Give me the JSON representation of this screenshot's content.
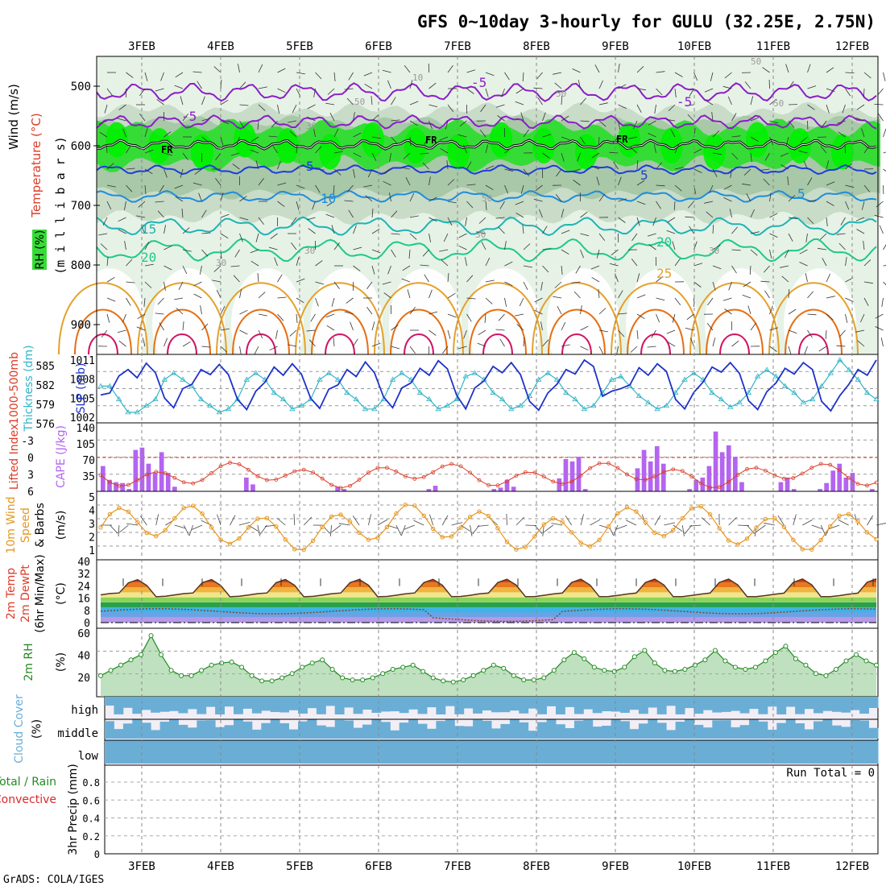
{
  "title": "GFS 0~10day 3-hourly for GULU (32.25E, 2.75N)",
  "credit": "GrADS: COLA/IGES",
  "colors": {
    "grid": "#888888",
    "rh_light": "#e6f2e6",
    "rh_mid": "#c8dcc8",
    "rh_dark": "#a8c8a8",
    "rh_green": "#36dc36",
    "rh_bright": "#00f000",
    "temp_purple": "#8a1ec8",
    "temp_blue": "#1e3cdc",
    "temp_sky": "#1e8cdc",
    "temp_teal": "#1eb4b4",
    "temp_green": "#1ec88c",
    "temp_orange": "#e6a02a",
    "temp_dorange": "#e66e14",
    "temp_magenta": "#d21464",
    "slp": "#1e32c8",
    "thickness": "#32b4c8",
    "lifted": "#dc3c28",
    "cape": "#b464f0",
    "wind10m": "#e6961e",
    "barb": "#444444",
    "rh2m": "#228b22",
    "rh2m_fill": "#8cc88c",
    "cloud": "#6aaed6",
    "cloud_bg": "#f2eef6",
    "rain_green": "#228b22",
    "rain_red": "#dc2828"
  },
  "dates": [
    "3FEB",
    "4FEB",
    "5FEB",
    "6FEB",
    "7FEB",
    "8FEB",
    "9FEB",
    "10FEB",
    "11FEB",
    "12FEB"
  ],
  "panels": {
    "upper": {
      "ylabels": [
        "Wind (m/s)",
        "Temperature (°C)",
        "RH (%)",
        "(m i l l i b a r s)"
      ],
      "ticks": [
        "500",
        "600",
        "700",
        "800",
        "900"
      ],
      "contour_labels": {
        "freeze": [
          "FR",
          "FR",
          "FR"
        ],
        "temps": [
          "-5",
          "-5",
          "5",
          "5",
          "10",
          "15",
          "20",
          "20",
          "25",
          "-5",
          "5"
        ],
        "rh": [
          "10",
          "30",
          "30",
          "50",
          "50",
          "50",
          "50",
          "30",
          "30",
          "30",
          "50"
        ]
      }
    },
    "slp": {
      "ylabels": [
        "1000-500mb",
        "Thickness (dm)",
        "SLP (mb)"
      ],
      "left_ticks": [
        "585",
        "582",
        "579",
        "576"
      ],
      "right_ticks": [
        "1011",
        "1008",
        "1005",
        "1002"
      ]
    },
    "cape": {
      "ylabels": [
        "Lifted Index",
        "CAPE (J/kg)"
      ],
      "left_ticks": [
        "-3",
        "0",
        "3",
        "6"
      ],
      "right_ticks": [
        "140",
        "105",
        "70",
        "35"
      ]
    },
    "wind": {
      "ylabels": [
        "10m Wind",
        "Speed",
        "& Barbs",
        "(m/s)"
      ],
      "ticks": [
        "5",
        "4",
        "3",
        "2",
        "1"
      ]
    },
    "temp2m": {
      "ylabels": [
        "2m Temp",
        "2m DewPt",
        "(6hr Min/Max)",
        "(°C)"
      ],
      "ticks": [
        "40",
        "32",
        "24",
        "16",
        "8",
        "0"
      ]
    },
    "rh2m": {
      "ylabels": [
        "2m RH",
        "(%)"
      ],
      "ticks": [
        "60",
        "40",
        "20"
      ]
    },
    "cloud": {
      "ylabel": "Cloud Cover",
      "ylabel2": "(%)",
      "levels": [
        "high",
        "middle",
        "low"
      ]
    },
    "precip": {
      "ylabels": [
        "Total / Rain",
        "Convective",
        "3hr Precip (mm)"
      ],
      "ticks": [
        "0.8",
        "0.6",
        "0.4",
        "0.2",
        "0"
      ],
      "run_total": "Run Total = 0"
    }
  },
  "chart_data": [
    {
      "type": "line",
      "name": "sea-level-pressure",
      "ylabel": "SLP (mb)",
      "ylim": [
        1002,
        1011
      ],
      "x_label_units": "3-hourly steps from 2FEB 12Z",
      "values": [
        1005.5,
        1005.8,
        1008.5,
        1009.5,
        1008.2,
        1010.5,
        1009,
        1005,
        1003.5,
        1006.5,
        1007.2,
        1009.5,
        1008.7,
        1010.3,
        1008.7,
        1004.8,
        1003.2,
        1006.1,
        1007.5,
        1009.9,
        1008.6,
        1010.4,
        1008.8,
        1005,
        1003.4,
        1006.4,
        1007.1,
        1009.5,
        1008.4,
        1010.7,
        1009,
        1005.2,
        1003.5,
        1006.6,
        1007.4,
        1009.7,
        1008.6,
        1010.9,
        1009.6,
        1005.5,
        1003.3,
        1006.6,
        1007.7,
        1010,
        1009,
        1010.6,
        1008.7,
        1004.5,
        1003.1,
        1005.8,
        1007.2,
        1009.5,
        1008.8,
        1011,
        1010,
        1005.3,
        1006.1,
        1006.5,
        1007.1,
        1009.8,
        1008.6,
        1010.4,
        1009.2,
        1004.8,
        1003.3,
        1005.9,
        1007.5,
        1009.9,
        1009.1,
        1010.6,
        1008.9,
        1004.6,
        1003.2,
        1006,
        1007.4,
        1009.7,
        1008.8,
        1010.6,
        1009.5,
        1004.5,
        1003.0,
        1005.4,
        1007.2,
        1009.5,
        1008.6,
        1011
      ]
    },
    {
      "type": "line",
      "name": "thickness",
      "ylabel": "1000-500mb Thickness (dm)",
      "ylim": [
        576,
        585
      ],
      "values": [
        581,
        581,
        579,
        577,
        577,
        578,
        579,
        582,
        583,
        582,
        581,
        579,
        578,
        577,
        577.5,
        579,
        582,
        583,
        582,
        580,
        579,
        577.5,
        578,
        579,
        582,
        583,
        582,
        580,
        579,
        577.5,
        577.5,
        579,
        582,
        583,
        582,
        580,
        579,
        577.5,
        578,
        579,
        582.5,
        583,
        582,
        580,
        579,
        577.5,
        578,
        579.5,
        582,
        583,
        582,
        580,
        579,
        577.5,
        578,
        580,
        582,
        582.5,
        581,
        579.5,
        578.5,
        577.5,
        578,
        580,
        582,
        583,
        582,
        580,
        579,
        577.8,
        578.5,
        580,
        582.5,
        583.5,
        582.5,
        581,
        580,
        578.5,
        579,
        581,
        583,
        585,
        583.5,
        582,
        580,
        579
      ]
    },
    {
      "type": "bar",
      "name": "cape",
      "ylabel": "CAPE (J/kg)",
      "ylim": [
        0,
        140
      ],
      "values": [
        55,
        25,
        20,
        18,
        5,
        90,
        95,
        60,
        40,
        85,
        40,
        10,
        0,
        0,
        0,
        0,
        0,
        0,
        0,
        0,
        0,
        0,
        30,
        15,
        0,
        0,
        0,
        0,
        0,
        0,
        0,
        0,
        0,
        0,
        0,
        0,
        10,
        5,
        0,
        0,
        0,
        0,
        0,
        0,
        0,
        0,
        0,
        0,
        0,
        0,
        5,
        12,
        0,
        0,
        0,
        0,
        0,
        0,
        0,
        0,
        5,
        8,
        25,
        10,
        0,
        0,
        0,
        0,
        0,
        0,
        28,
        70,
        65,
        75,
        5,
        0,
        0,
        0,
        0,
        0,
        0,
        0,
        50,
        90,
        65,
        98,
        60,
        0,
        0,
        0,
        5,
        25,
        30,
        55,
        130,
        85,
        100,
        75,
        20,
        0,
        0,
        0,
        0,
        0,
        20,
        30,
        5,
        0,
        0,
        0,
        5,
        18,
        45,
        60,
        30,
        40,
        0,
        0,
        5
      ]
    },
    {
      "type": "line",
      "name": "2m-rh",
      "ylabel": "2m RH (%)",
      "ylim": [
        0,
        60
      ],
      "values": [
        20,
        25,
        30,
        35,
        40,
        58,
        40,
        25,
        20,
        20,
        25,
        30,
        32,
        33,
        28,
        20,
        15,
        15,
        18,
        22,
        28,
        32,
        35,
        26,
        18,
        16,
        16,
        18,
        22,
        26,
        28,
        30,
        24,
        18,
        15,
        14,
        16,
        20,
        25,
        30,
        27,
        20,
        16,
        16,
        18,
        25,
        35,
        42,
        36,
        28,
        25,
        24,
        28,
        38,
        44,
        32,
        25,
        24,
        26,
        30,
        35,
        44,
        34,
        28,
        26,
        28,
        34,
        42,
        48,
        36,
        30,
        22,
        20,
        26,
        34,
        40,
        34,
        30
      ]
    }
  ]
}
